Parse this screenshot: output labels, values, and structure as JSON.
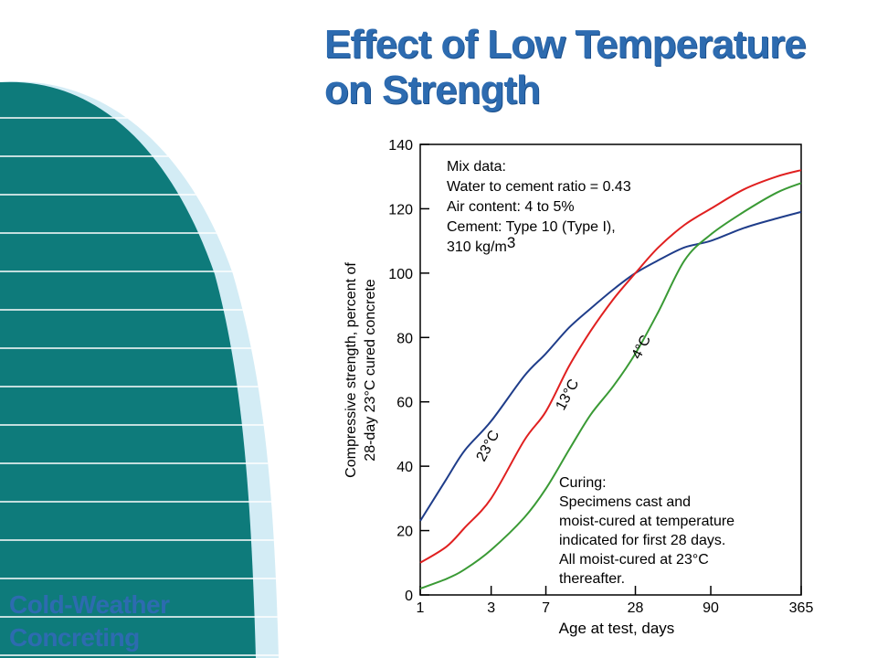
{
  "slide": {
    "title_line1": "Effect of Low Temperature",
    "title_line2": "on Strength",
    "course_line1": "Cold-Weather",
    "course_line2": "Concreting"
  },
  "colors": {
    "brand_blue": "#2d6bb0",
    "teal": "#0e7b7b",
    "pale_blue": "#d3ecf5"
  },
  "chart_data": {
    "type": "line",
    "title": "",
    "xlabel": "Age at test, days",
    "ylabel_line1": "Compressive strength, percent of",
    "ylabel_line2": "28-day 23°C cured concrete",
    "x_scale": "log",
    "x_ticks": [
      1,
      3,
      7,
      28,
      90,
      365
    ],
    "y_ticks": [
      0,
      20,
      40,
      60,
      80,
      100,
      120,
      140
    ],
    "xlim": [
      1,
      365
    ],
    "ylim": [
      0,
      140
    ],
    "grid": false,
    "series": [
      {
        "name": "23°C",
        "color": "#1f3d8a",
        "x": [
          1,
          1.5,
          2,
          3,
          5,
          7,
          10,
          14,
          20,
          28,
          40,
          60,
          90,
          150,
          250,
          365
        ],
        "y": [
          23,
          36,
          45,
          54,
          68,
          75,
          83,
          89,
          95,
          100,
          104,
          108,
          110,
          114,
          117,
          119
        ]
      },
      {
        "name": "13°C",
        "color": "#e02020",
        "x": [
          1,
          1.5,
          2,
          3,
          5,
          7,
          10,
          14,
          20,
          28,
          40,
          60,
          90,
          150,
          250,
          365
        ],
        "y": [
          10,
          15,
          21,
          30,
          48,
          57,
          71,
          82,
          92,
          100,
          108,
          115,
          120,
          126,
          130,
          132
        ]
      },
      {
        "name": "4°C",
        "color": "#3a9a35",
        "x": [
          1,
          1.5,
          2,
          3,
          5,
          7,
          10,
          14,
          20,
          28,
          40,
          60,
          90,
          150,
          250,
          365
        ],
        "y": [
          2,
          5,
          8,
          14,
          24,
          33,
          45,
          56,
          65,
          75,
          88,
          104,
          112,
          119,
          125,
          128
        ]
      }
    ],
    "annotations": {
      "mix_data": [
        "Mix data:",
        "Water to cement ratio = 0.43",
        "Air content: 4 to 5%",
        "Cement: Type 10 (Type I),",
        "310 kg/m"
      ],
      "mix_superscript": "3",
      "curing": [
        "Curing:",
        "Specimens cast and",
        "moist-cured at temperature",
        "indicated for first 28 days.",
        "All moist-cured at 23°C",
        "thereafter."
      ]
    }
  }
}
